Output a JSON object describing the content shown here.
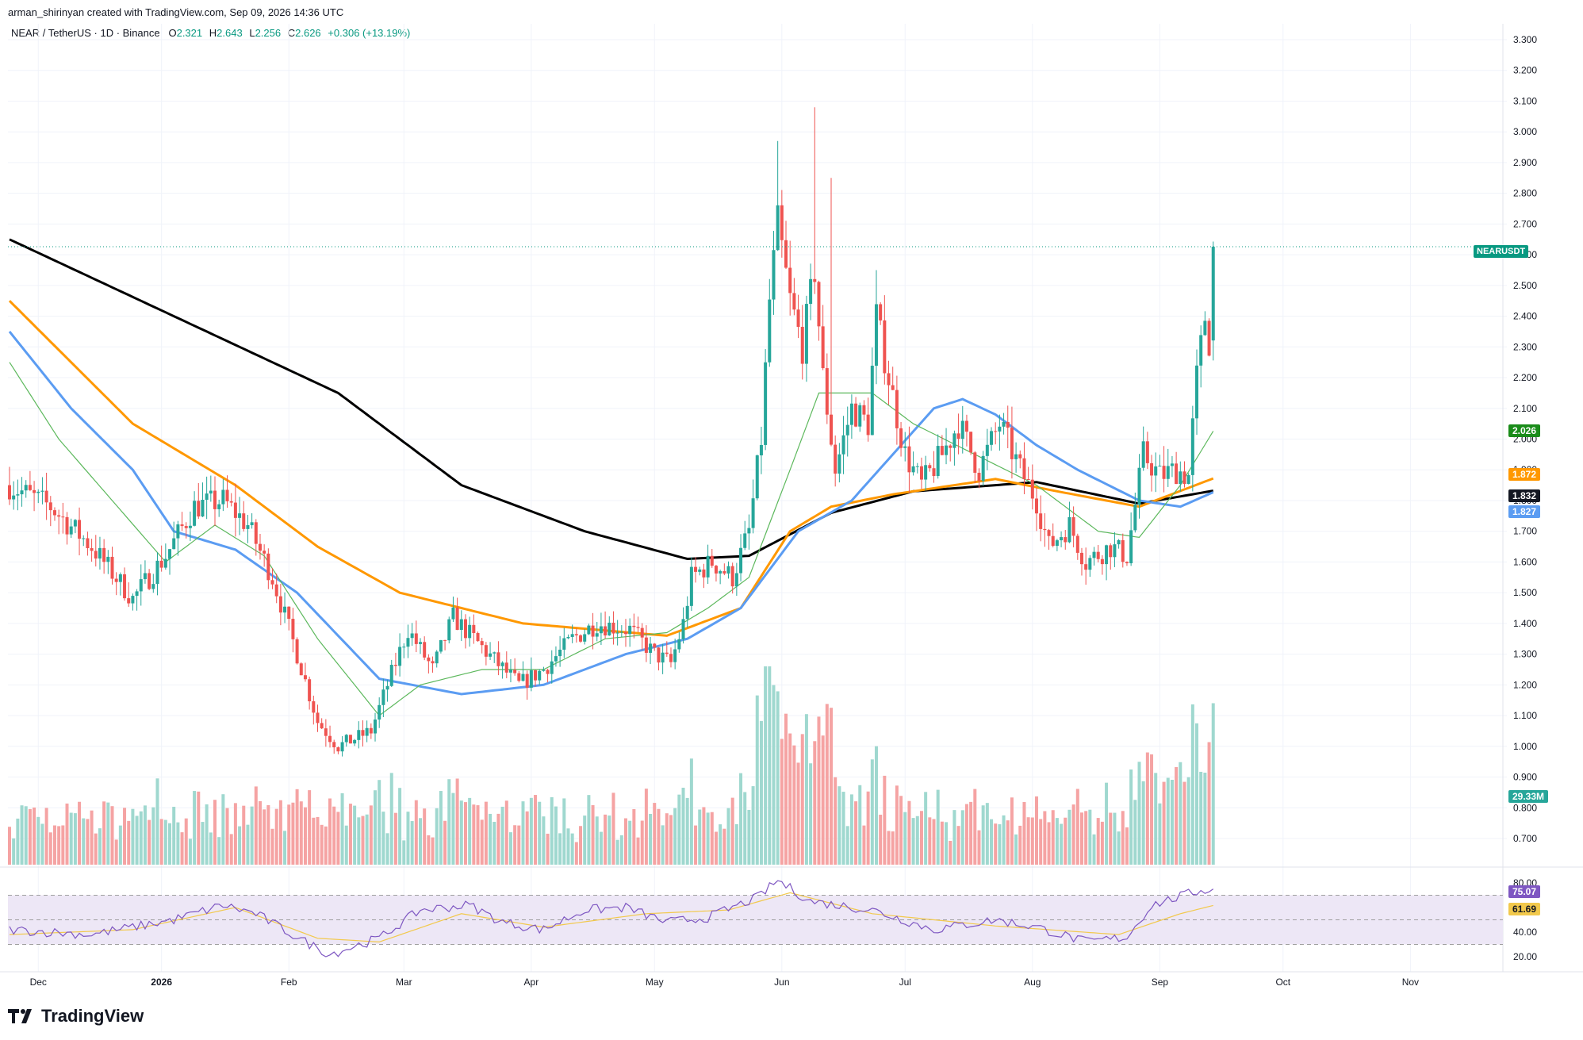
{
  "header": {
    "credit": "arman_shirinyan created with TradingView.com, Sep 09, 2026 14:36 UTC",
    "symbol": "NEAR / TetherUS · 1D · Binance",
    "open_label": "O",
    "open": "2.321",
    "high_label": "H",
    "high": "2.643",
    "low_label": "L",
    "low": "2.256",
    "close_label": "C",
    "close": "2.626",
    "change": "+0.306 (+13.19%)"
  },
  "brand": {
    "name": "TradingView"
  },
  "colors": {
    "up": "#26a69a",
    "down": "#ef5350",
    "up_vol": "#9fd8cf",
    "down_vol": "#f5a3a3",
    "ma_black": "#000000",
    "ma_orange": "#ff9800",
    "ma_blue": "#5b9cf2",
    "ma_green": "#5cb85c",
    "rsi_line": "#7e57c2",
    "rsi_ma": "#f2c94c",
    "rsi_band": "#ede7f6"
  },
  "price_tags": {
    "symbol": {
      "text": "NEARUSDT",
      "color": "#089981"
    },
    "ma_green": {
      "text": "2.026",
      "color": "#1a8c1a"
    },
    "ma_orange": {
      "text": "1.872",
      "color": "#ff9800"
    },
    "ma_black": {
      "text": "1.832",
      "color": "#131722"
    },
    "ma_blue": {
      "text": "1.827",
      "color": "#5b9cf2"
    },
    "volume": {
      "text": "29.33M",
      "color": "#26a69a"
    },
    "rsi": {
      "text": "75.07",
      "color": "#7e57c2"
    },
    "rsi_ma": {
      "text": "61.69",
      "color": "#f2c94c"
    }
  },
  "chart_data": {
    "type": "candlestick",
    "title": "NEAR / TetherUS · 1D · Binance",
    "ylim": [
      0.62,
      3.35
    ],
    "y_ticks": [
      "3.300",
      "3.200",
      "3.100",
      "3.000",
      "2.900",
      "2.800",
      "2.700",
      "2.600",
      "2.500",
      "2.400",
      "2.300",
      "2.200",
      "2.100",
      "2.000",
      "1.900",
      "1.800",
      "1.700",
      "1.600",
      "1.500",
      "1.400",
      "1.300",
      "1.200",
      "1.100",
      "1.000",
      "0.900",
      "0.800",
      "0.700"
    ],
    "x_ticks": [
      "Dec",
      "2026",
      "Feb",
      "Mar",
      "Apr",
      "May",
      "Jun",
      "Jul",
      "Aug",
      "Sep",
      "Oct",
      "Nov"
    ],
    "close_anchors": [
      {
        "day": 0,
        "price": 1.85
      },
      {
        "day": 10,
        "price": 1.78
      },
      {
        "day": 20,
        "price": 1.65
      },
      {
        "day": 30,
        "price": 1.48
      },
      {
        "day": 38,
        "price": 1.62
      },
      {
        "day": 45,
        "price": 1.78
      },
      {
        "day": 52,
        "price": 1.8
      },
      {
        "day": 58,
        "price": 1.72
      },
      {
        "day": 64,
        "price": 1.55
      },
      {
        "day": 70,
        "price": 1.3
      },
      {
        "day": 75,
        "price": 1.08
      },
      {
        "day": 80,
        "price": 1.0
      },
      {
        "day": 88,
        "price": 1.05
      },
      {
        "day": 92,
        "price": 1.2
      },
      {
        "day": 97,
        "price": 1.38
      },
      {
        "day": 103,
        "price": 1.25
      },
      {
        "day": 108,
        "price": 1.42
      },
      {
        "day": 113,
        "price": 1.35
      },
      {
        "day": 118,
        "price": 1.28
      },
      {
        "day": 124,
        "price": 1.2
      },
      {
        "day": 130,
        "price": 1.25
      },
      {
        "day": 137,
        "price": 1.35
      },
      {
        "day": 143,
        "price": 1.4
      },
      {
        "day": 151,
        "price": 1.38
      },
      {
        "day": 157,
        "price": 1.3
      },
      {
        "day": 161,
        "price": 1.27
      },
      {
        "day": 164,
        "price": 1.4
      },
      {
        "day": 166,
        "price": 1.55
      },
      {
        "day": 171,
        "price": 1.6
      },
      {
        "day": 176,
        "price": 1.55
      },
      {
        "day": 180,
        "price": 1.7
      },
      {
        "day": 183,
        "price": 2.0
      },
      {
        "day": 185,
        "price": 2.45
      },
      {
        "day": 187,
        "price": 2.7
      },
      {
        "day": 190,
        "price": 2.45
      },
      {
        "day": 193,
        "price": 2.3
      },
      {
        "day": 196,
        "price": 2.55
      },
      {
        "day": 198,
        "price": 2.2
      },
      {
        "day": 201,
        "price": 1.9
      },
      {
        "day": 205,
        "price": 2.1
      },
      {
        "day": 209,
        "price": 2.05
      },
      {
        "day": 211,
        "price": 2.4
      },
      {
        "day": 214,
        "price": 2.2
      },
      {
        "day": 218,
        "price": 1.95
      },
      {
        "day": 222,
        "price": 1.85
      },
      {
        "day": 227,
        "price": 1.95
      },
      {
        "day": 231,
        "price": 2.05
      },
      {
        "day": 236,
        "price": 1.9
      },
      {
        "day": 241,
        "price": 2.05
      },
      {
        "day": 246,
        "price": 1.9
      },
      {
        "day": 250,
        "price": 1.8
      },
      {
        "day": 253,
        "price": 1.65
      },
      {
        "day": 258,
        "price": 1.72
      },
      {
        "day": 262,
        "price": 1.6
      },
      {
        "day": 268,
        "price": 1.65
      },
      {
        "day": 272,
        "price": 1.62
      },
      {
        "day": 276,
        "price": 1.95
      },
      {
        "day": 280,
        "price": 1.88
      },
      {
        "day": 284,
        "price": 1.9
      },
      {
        "day": 287,
        "price": 1.88
      },
      {
        "day": 289,
        "price": 2.2
      },
      {
        "day": 291,
        "price": 2.4
      },
      {
        "day": 292,
        "price": 2.32
      },
      {
        "day": 293,
        "price": 2.626
      }
    ],
    "last_candle": {
      "open": 2.321,
      "high": 2.643,
      "low": 2.256,
      "close": 2.626
    },
    "moving_averages": [
      {
        "color": "#000000",
        "last": 1.832,
        "anchors": [
          [
            0,
            2.65
          ],
          [
            40,
            2.4
          ],
          [
            80,
            2.15
          ],
          [
            110,
            1.85
          ],
          [
            140,
            1.7
          ],
          [
            165,
            1.61
          ],
          [
            180,
            1.62
          ],
          [
            200,
            1.76
          ],
          [
            220,
            1.83
          ],
          [
            250,
            1.86
          ],
          [
            275,
            1.79
          ],
          [
            293,
            1.832
          ]
        ]
      },
      {
        "color": "#ff9800",
        "last": 1.872,
        "anchors": [
          [
            0,
            2.45
          ],
          [
            30,
            2.05
          ],
          [
            55,
            1.85
          ],
          [
            75,
            1.65
          ],
          [
            95,
            1.5
          ],
          [
            125,
            1.4
          ],
          [
            160,
            1.36
          ],
          [
            178,
            1.45
          ],
          [
            190,
            1.7
          ],
          [
            200,
            1.78
          ],
          [
            215,
            1.82
          ],
          [
            240,
            1.87
          ],
          [
            255,
            1.83
          ],
          [
            275,
            1.78
          ],
          [
            293,
            1.872
          ]
        ]
      },
      {
        "color": "#5b9cf2",
        "last": 1.827,
        "anchors": [
          [
            0,
            2.35
          ],
          [
            15,
            2.1
          ],
          [
            30,
            1.9
          ],
          [
            40,
            1.7
          ],
          [
            55,
            1.64
          ],
          [
            70,
            1.5
          ],
          [
            90,
            1.22
          ],
          [
            110,
            1.17
          ],
          [
            130,
            1.2
          ],
          [
            150,
            1.3
          ],
          [
            165,
            1.35
          ],
          [
            178,
            1.45
          ],
          [
            192,
            1.7
          ],
          [
            205,
            1.8
          ],
          [
            215,
            1.95
          ],
          [
            225,
            2.1
          ],
          [
            232,
            2.13
          ],
          [
            240,
            2.08
          ],
          [
            250,
            1.98
          ],
          [
            260,
            1.9
          ],
          [
            275,
            1.8
          ],
          [
            285,
            1.78
          ],
          [
            293,
            1.827
          ]
        ]
      },
      {
        "color": "#5cb85c",
        "last": 2.026,
        "anchors": [
          [
            0,
            2.25
          ],
          [
            12,
            2.0
          ],
          [
            25,
            1.8
          ],
          [
            38,
            1.6
          ],
          [
            50,
            1.72
          ],
          [
            62,
            1.62
          ],
          [
            75,
            1.35
          ],
          [
            90,
            1.1
          ],
          [
            100,
            1.2
          ],
          [
            115,
            1.25
          ],
          [
            130,
            1.25
          ],
          [
            145,
            1.35
          ],
          [
            160,
            1.37
          ],
          [
            170,
            1.45
          ],
          [
            180,
            1.55
          ],
          [
            190,
            1.9
          ],
          [
            197,
            2.15
          ],
          [
            210,
            2.15
          ],
          [
            220,
            2.05
          ],
          [
            235,
            1.95
          ],
          [
            250,
            1.85
          ],
          [
            265,
            1.7
          ],
          [
            275,
            1.68
          ],
          [
            285,
            1.85
          ],
          [
            293,
            2.026
          ]
        ]
      }
    ],
    "volume_last": "29.33M",
    "rsi": {
      "levels": [
        80,
        70,
        50,
        30,
        20
      ],
      "tick_labels": [
        "80.00",
        "40.00",
        "20.00"
      ],
      "last": 75.07,
      "ma_last": 61.69,
      "anchors": [
        [
          0,
          42
        ],
        [
          20,
          38
        ],
        [
          40,
          50
        ],
        [
          52,
          62
        ],
        [
          60,
          55
        ],
        [
          72,
          32
        ],
        [
          78,
          22
        ],
        [
          90,
          35
        ],
        [
          100,
          58
        ],
        [
          112,
          62
        ],
        [
          120,
          48
        ],
        [
          130,
          42
        ],
        [
          140,
          58
        ],
        [
          150,
          60
        ],
        [
          160,
          48
        ],
        [
          170,
          52
        ],
        [
          182,
          68
        ],
        [
          187,
          82
        ],
        [
          195,
          65
        ],
        [
          210,
          58
        ],
        [
          225,
          42
        ],
        [
          240,
          50
        ],
        [
          250,
          44
        ],
        [
          262,
          32
        ],
        [
          272,
          36
        ],
        [
          278,
          62
        ],
        [
          284,
          68
        ],
        [
          290,
          74
        ],
        [
          293,
          75.07
        ]
      ],
      "ma_anchors": [
        [
          0,
          38
        ],
        [
          30,
          42
        ],
        [
          55,
          60
        ],
        [
          75,
          35
        ],
        [
          90,
          32
        ],
        [
          110,
          55
        ],
        [
          130,
          44
        ],
        [
          155,
          55
        ],
        [
          175,
          58
        ],
        [
          190,
          72
        ],
        [
          210,
          55
        ],
        [
          240,
          45
        ],
        [
          270,
          38
        ],
        [
          285,
          55
        ],
        [
          293,
          61.69
        ]
      ]
    }
  }
}
